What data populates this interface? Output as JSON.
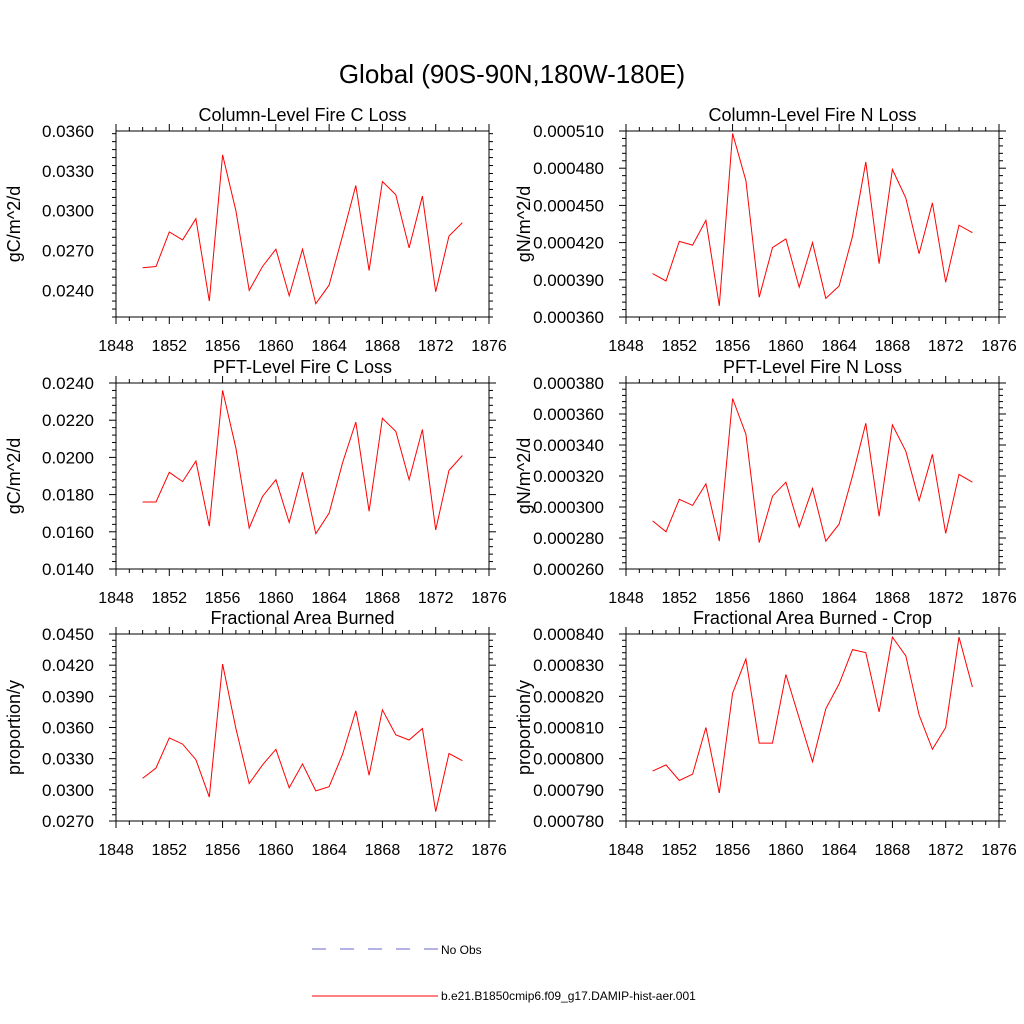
{
  "figure_title": "Global (90S-90N,180W-180E)",
  "legend": {
    "no_obs": {
      "label": "No Obs",
      "color": "#6666cc",
      "style": "dashed"
    },
    "model": {
      "label": "b.e21.B1850cmip6.f09_g17.DAMIP-hist-aer.001",
      "color": "#ff0000",
      "style": "solid"
    }
  },
  "chart_data": [
    {
      "type": "line",
      "title": "Column-Level Fire C Loss",
      "ylabel": "gC/m^2/d",
      "xlim": [
        1848,
        1876
      ],
      "xticks": [
        1848,
        1852,
        1856,
        1860,
        1864,
        1868,
        1872,
        1876
      ],
      "ylim": [
        0.022,
        0.036
      ],
      "yticks": [
        "0.0240",
        "0.0270",
        "0.0300",
        "0.0330",
        "0.0360"
      ],
      "x": [
        1850,
        1851,
        1852,
        1853,
        1854,
        1855,
        1856,
        1857,
        1858,
        1859,
        1860,
        1861,
        1862,
        1863,
        1864,
        1865,
        1866,
        1867,
        1868,
        1869,
        1870,
        1871,
        1872,
        1873,
        1874
      ],
      "series": [
        {
          "name": "b.e21.B1850cmip6.f09_g17.DAMIP-hist-aer.001",
          "values": [
            0.0257,
            0.0258,
            0.0284,
            0.0278,
            0.0294,
            0.0232,
            0.0342,
            0.03,
            0.024,
            0.0258,
            0.0271,
            0.0236,
            0.0271,
            0.023,
            0.0244,
            0.0281,
            0.0319,
            0.0255,
            0.0322,
            0.0312,
            0.0272,
            0.0311,
            0.0239,
            0.0281,
            0.0291
          ]
        }
      ]
    },
    {
      "type": "line",
      "title": "Column-Level Fire N Loss",
      "ylabel": "gN/m^2/d",
      "xlim": [
        1848,
        1876
      ],
      "xticks": [
        1848,
        1852,
        1856,
        1860,
        1864,
        1868,
        1872,
        1876
      ],
      "ylim": [
        0.00036,
        0.00051
      ],
      "yticks": [
        "0.000360",
        "0.000390",
        "0.000420",
        "0.000450",
        "0.000480",
        "0.000510"
      ],
      "x": [
        1850,
        1851,
        1852,
        1853,
        1854,
        1855,
        1856,
        1857,
        1858,
        1859,
        1860,
        1861,
        1862,
        1863,
        1864,
        1865,
        1866,
        1867,
        1868,
        1869,
        1870,
        1871,
        1872,
        1873,
        1874
      ],
      "series": [
        {
          "name": "b.e21.B1850cmip6.f09_g17.DAMIP-hist-aer.001",
          "values": [
            0.000395,
            0.000389,
            0.000421,
            0.000418,
            0.000438,
            0.000369,
            0.000508,
            0.00047,
            0.000376,
            0.000416,
            0.000423,
            0.000384,
            0.00042,
            0.000375,
            0.000385,
            0.000425,
            0.000485,
            0.000403,
            0.000479,
            0.000456,
            0.000411,
            0.000452,
            0.000388,
            0.000434,
            0.000428
          ]
        }
      ]
    },
    {
      "type": "line",
      "title": "PFT-Level Fire C Loss",
      "ylabel": "gC/m^2/d",
      "xlim": [
        1848,
        1876
      ],
      "xticks": [
        1848,
        1852,
        1856,
        1860,
        1864,
        1868,
        1872,
        1876
      ],
      "ylim": [
        0.014,
        0.024
      ],
      "yticks": [
        "0.0140",
        "0.0160",
        "0.0180",
        "0.0200",
        "0.0220",
        "0.0240"
      ],
      "x": [
        1850,
        1851,
        1852,
        1853,
        1854,
        1855,
        1856,
        1857,
        1858,
        1859,
        1860,
        1861,
        1862,
        1863,
        1864,
        1865,
        1866,
        1867,
        1868,
        1869,
        1870,
        1871,
        1872,
        1873,
        1874
      ],
      "series": [
        {
          "name": "b.e21.B1850cmip6.f09_g17.DAMIP-hist-aer.001",
          "values": [
            0.0176,
            0.0176,
            0.0192,
            0.0187,
            0.0198,
            0.0163,
            0.0236,
            0.0205,
            0.0162,
            0.0179,
            0.0188,
            0.0165,
            0.0192,
            0.0159,
            0.017,
            0.0197,
            0.0219,
            0.0171,
            0.0221,
            0.0214,
            0.0188,
            0.0215,
            0.0161,
            0.0193,
            0.0201
          ]
        }
      ]
    },
    {
      "type": "line",
      "title": "PFT-Level Fire N Loss",
      "ylabel": "gN/m^2/d",
      "xlim": [
        1848,
        1876
      ],
      "xticks": [
        1848,
        1852,
        1856,
        1860,
        1864,
        1868,
        1872,
        1876
      ],
      "ylim": [
        0.00026,
        0.00038
      ],
      "yticks": [
        "0.000260",
        "0.000280",
        "0.000300",
        "0.000320",
        "0.000340",
        "0.000360",
        "0.000380"
      ],
      "x": [
        1850,
        1851,
        1852,
        1853,
        1854,
        1855,
        1856,
        1857,
        1858,
        1859,
        1860,
        1861,
        1862,
        1863,
        1864,
        1865,
        1866,
        1867,
        1868,
        1869,
        1870,
        1871,
        1872,
        1873,
        1874
      ],
      "series": [
        {
          "name": "b.e21.B1850cmip6.f09_g17.DAMIP-hist-aer.001",
          "values": [
            0.000291,
            0.000284,
            0.000305,
            0.000301,
            0.000315,
            0.000278,
            0.00037,
            0.000347,
            0.000277,
            0.000307,
            0.000316,
            0.000287,
            0.000312,
            0.000278,
            0.000289,
            0.00032,
            0.000354,
            0.000294,
            0.000353,
            0.000336,
            0.000304,
            0.000334,
            0.000283,
            0.000321,
            0.000316
          ]
        }
      ]
    },
    {
      "type": "line",
      "title": "Fractional Area Burned",
      "ylabel": "proportion/y",
      "xlim": [
        1848,
        1876
      ],
      "xticks": [
        1848,
        1852,
        1856,
        1860,
        1864,
        1868,
        1872,
        1876
      ],
      "ylim": [
        0.027,
        0.045
      ],
      "yticks": [
        "0.0270",
        "0.0300",
        "0.0330",
        "0.0360",
        "0.0390",
        "0.0420",
        "0.0450"
      ],
      "x": [
        1850,
        1851,
        1852,
        1853,
        1854,
        1855,
        1856,
        1857,
        1858,
        1859,
        1860,
        1861,
        1862,
        1863,
        1864,
        1865,
        1866,
        1867,
        1868,
        1869,
        1870,
        1871,
        1872,
        1873,
        1874
      ],
      "series": [
        {
          "name": "b.e21.B1850cmip6.f09_g17.DAMIP-hist-aer.001",
          "values": [
            0.0311,
            0.0321,
            0.035,
            0.0344,
            0.0329,
            0.0293,
            0.0421,
            0.0359,
            0.0306,
            0.0324,
            0.0339,
            0.0302,
            0.0325,
            0.0299,
            0.0303,
            0.0334,
            0.0376,
            0.0314,
            0.0377,
            0.0353,
            0.0348,
            0.0359,
            0.0279,
            0.0335,
            0.0328
          ]
        }
      ]
    },
    {
      "type": "line",
      "title": "Fractional Area Burned - Crop",
      "ylabel": "proportion/y",
      "xlim": [
        1848,
        1876
      ],
      "xticks": [
        1848,
        1852,
        1856,
        1860,
        1864,
        1868,
        1872,
        1876
      ],
      "ylim": [
        0.00078,
        0.00084
      ],
      "yticks": [
        "0.000780",
        "0.000790",
        "0.000800",
        "0.000810",
        "0.000820",
        "0.000830",
        "0.000840"
      ],
      "x": [
        1850,
        1851,
        1852,
        1853,
        1854,
        1855,
        1856,
        1857,
        1858,
        1859,
        1860,
        1861,
        1862,
        1863,
        1864,
        1865,
        1866,
        1867,
        1868,
        1869,
        1870,
        1871,
        1872,
        1873,
        1874
      ],
      "series": [
        {
          "name": "b.e21.B1850cmip6.f09_g17.DAMIP-hist-aer.001",
          "values": [
            0.000796,
            0.000798,
            0.000793,
            0.000795,
            0.00081,
            0.000789,
            0.000821,
            0.000832,
            0.000805,
            0.000805,
            0.000827,
            0.000813,
            0.000799,
            0.000816,
            0.000824,
            0.000835,
            0.000834,
            0.000815,
            0.000839,
            0.000833,
            0.000814,
            0.000803,
            0.00081,
            0.000839,
            0.000823
          ]
        }
      ]
    }
  ]
}
